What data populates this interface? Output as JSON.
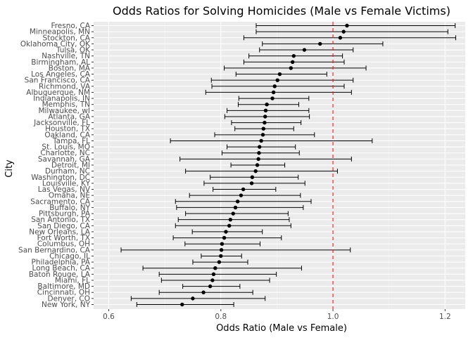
{
  "chart_data": {
    "type": "scatter",
    "title": "Odds Ratios for Solving Homicides (Male vs Female Victims)",
    "xlabel": "Odds Ratio (Male vs Female)",
    "ylabel": "City",
    "xlim": [
      0.573,
      1.236
    ],
    "x_ticks": [
      0.6,
      0.8,
      1.0,
      1.2
    ],
    "x_tick_labels": [
      "0.6",
      "0.8",
      "1.0",
      "1.2"
    ],
    "reference_line": 1.0,
    "grid": true,
    "error_bars": true,
    "cities": [
      {
        "city": "Fresno, CA",
        "or": 1.025,
        "lo": 0.863,
        "hi": 1.218
      },
      {
        "city": "Minneapolis, MN",
        "or": 1.019,
        "lo": 0.863,
        "hi": 1.205
      },
      {
        "city": "Stockton, CA",
        "or": 1.013,
        "lo": 0.841,
        "hi": 1.219
      },
      {
        "city": "Oklahoma City, OK",
        "or": 0.977,
        "lo": 0.874,
        "hi": 1.089
      },
      {
        "city": "Tulsa, OK",
        "or": 0.949,
        "lo": 0.869,
        "hi": 1.036
      },
      {
        "city": "Nashville, TN",
        "or": 0.93,
        "lo": 0.85,
        "hi": 1.017
      },
      {
        "city": "Birmingham, AL",
        "or": 0.928,
        "lo": 0.841,
        "hi": 1.02
      },
      {
        "city": "Boston, MA",
        "or": 0.925,
        "lo": 0.806,
        "hi": 1.059
      },
      {
        "city": "Los Angeles, CA",
        "or": 0.905,
        "lo": 0.827,
        "hi": 0.989
      },
      {
        "city": "San Francisco, CA",
        "or": 0.901,
        "lo": 0.783,
        "hi": 1.036
      },
      {
        "city": "Richmond, VA",
        "or": 0.896,
        "lo": 0.784,
        "hi": 1.02
      },
      {
        "city": "Albuquerque, NM",
        "or": 0.894,
        "lo": 0.773,
        "hi": 1.033
      },
      {
        "city": "Indianapolis, IN",
        "or": 0.892,
        "lo": 0.832,
        "hi": 0.957
      },
      {
        "city": "Memphis, TN",
        "or": 0.882,
        "lo": 0.831,
        "hi": 0.939
      },
      {
        "city": "Milwaukee, wI",
        "or": 0.88,
        "lo": 0.811,
        "hi": 0.957
      },
      {
        "city": "Atlanta, GA",
        "or": 0.879,
        "lo": 0.807,
        "hi": 0.958
      },
      {
        "city": "Jacksonville, FL",
        "or": 0.878,
        "lo": 0.819,
        "hi": 0.943
      },
      {
        "city": "Houston, TX",
        "or": 0.876,
        "lo": 0.825,
        "hi": 0.93
      },
      {
        "city": "Oakland, CA",
        "or": 0.875,
        "lo": 0.789,
        "hi": 0.967
      },
      {
        "city": "Tampa, FL",
        "or": 0.872,
        "lo": 0.71,
        "hi": 1.07
      },
      {
        "city": "St. Louis, MO",
        "or": 0.869,
        "lo": 0.811,
        "hi": 0.933
      },
      {
        "city": "Charlotte, NC",
        "or": 0.868,
        "lo": 0.802,
        "hi": 0.94
      },
      {
        "city": "Savannah, GA",
        "or": 0.867,
        "lo": 0.727,
        "hi": 1.033
      },
      {
        "city": "Detroit, MI",
        "or": 0.865,
        "lo": 0.818,
        "hi": 0.914
      },
      {
        "city": "Durham, NC",
        "or": 0.862,
        "lo": 0.737,
        "hi": 1.008
      },
      {
        "city": "Washington, DC",
        "or": 0.856,
        "lo": 0.781,
        "hi": 0.938
      },
      {
        "city": "Louisville, KY",
        "or": 0.855,
        "lo": 0.77,
        "hi": 0.95
      },
      {
        "city": "Las Vegas, NV",
        "or": 0.84,
        "lo": 0.786,
        "hi": 0.898
      },
      {
        "city": "Omaha, NE",
        "or": 0.836,
        "lo": 0.744,
        "hi": 0.942
      },
      {
        "city": "Sacramento, CA",
        "or": 0.83,
        "lo": 0.719,
        "hi": 0.961
      },
      {
        "city": "Buffalo, NY",
        "or": 0.826,
        "lo": 0.721,
        "hi": 0.947
      },
      {
        "city": "Pittsburgh, PA",
        "or": 0.822,
        "lo": 0.737,
        "hi": 0.92
      },
      {
        "city": "San Antonio, TX",
        "or": 0.817,
        "lo": 0.724,
        "hi": 0.922
      },
      {
        "city": "San Diego, CA",
        "or": 0.815,
        "lo": 0.719,
        "hi": 0.925
      },
      {
        "city": "New Orleans, LA",
        "or": 0.809,
        "lo": 0.749,
        "hi": 0.874
      },
      {
        "city": "Fort Worth, TX",
        "or": 0.806,
        "lo": 0.715,
        "hi": 0.908
      },
      {
        "city": "Columbus, OH",
        "or": 0.802,
        "lo": 0.736,
        "hi": 0.87
      },
      {
        "city": "San Bernardino, CA",
        "or": 0.801,
        "lo": 0.622,
        "hi": 1.031
      },
      {
        "city": "Chicago, IL",
        "or": 0.8,
        "lo": 0.765,
        "hi": 0.837
      },
      {
        "city": "Philadelphia, PA",
        "or": 0.797,
        "lo": 0.75,
        "hi": 0.848
      },
      {
        "city": "Long Beach, CA",
        "or": 0.79,
        "lo": 0.661,
        "hi": 0.944
      },
      {
        "city": "Baton Rouge, LA",
        "or": 0.787,
        "lo": 0.69,
        "hi": 0.899
      },
      {
        "city": "Miami, FL",
        "or": 0.785,
        "lo": 0.694,
        "hi": 0.887
      },
      {
        "city": "Baltimore, MD",
        "or": 0.781,
        "lo": 0.732,
        "hi": 0.834
      },
      {
        "city": "Cincinnati, OH",
        "or": 0.769,
        "lo": 0.69,
        "hi": 0.857
      },
      {
        "city": "Denver, CO",
        "or": 0.75,
        "lo": 0.64,
        "hi": 0.879
      },
      {
        "city": "New York, NY",
        "or": 0.731,
        "lo": 0.65,
        "hi": 0.823
      }
    ]
  },
  "colors": {
    "panel_bg": "#ebebeb",
    "grid_major": "#ffffff",
    "grid_minor": "#f5f5f5",
    "point": "#000000",
    "errorbar": "#000000",
    "reference_line": "#e41a1c",
    "axis_text": "#4d4d4d",
    "title_text": "#000000"
  }
}
